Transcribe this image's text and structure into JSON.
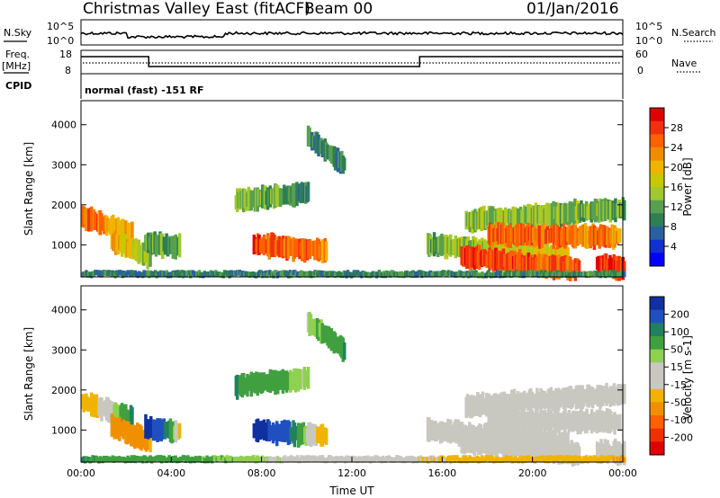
{
  "header": {
    "title": "Christmas Valley East (fitACF)",
    "beam": "Beam 00",
    "date": "01/Jan/2016"
  },
  "panels": {
    "nsky_label": "N.Sky",
    "nsearch_label": "N.Search",
    "nave_label": "Nave",
    "freq_label_1": "Freq.",
    "freq_label_2": "[MHz]",
    "cpid_label": "CPID",
    "cpid_text": "normal (fast) -151 RF",
    "noise_left_ticks": [
      "10^5",
      "10^0"
    ],
    "noise_right_ticks": [
      "10^5",
      "10^0"
    ],
    "freq_left_ticks": [
      "18",
      "8"
    ],
    "freq_right_ticks": [
      "60",
      "0"
    ]
  },
  "power_colorbar": {
    "label": "Power [dB]",
    "ticks": [
      "28",
      "24",
      "20",
      "16",
      "12",
      "8",
      "4"
    ],
    "colors": [
      "#e00000",
      "#f03010",
      "#ff6000",
      "#f08c00",
      "#f0b400",
      "#c8c800",
      "#a0c830",
      "#58a050",
      "#2f7f50",
      "#2a60a0",
      "#1030d0",
      "#0000ff"
    ]
  },
  "velocity_colorbar": {
    "label": "Velocity [m s-1]",
    "ticks": [
      "200",
      "100",
      "50",
      "15",
      "-15",
      "-50",
      "-100",
      "-200"
    ],
    "colors": [
      "#1030a0",
      "#2050c0",
      "#208060",
      "#40a040",
      "#90d050",
      "#c8c8c0",
      "#c8c8c0",
      "#f0b400",
      "#f09000",
      "#ff6000",
      "#f03000",
      "#e00000"
    ]
  },
  "chart_data": [
    {
      "type": "heatmap",
      "name": "power",
      "ylabel": "Slant Range [km]",
      "yticks": [
        "1000",
        "2000",
        "3000",
        "4000"
      ],
      "ylim": [
        200,
        4600
      ],
      "xlim": [
        0,
        24
      ],
      "bands": [
        {
          "t0": 0.0,
          "t1": 2.2,
          "r0": 1700,
          "r1": 1300,
          "v0": 24,
          "v1": 18
        },
        {
          "t0": 1.3,
          "t1": 3.0,
          "r0": 1100,
          "r1": 700,
          "v0": 20,
          "v1": 14
        },
        {
          "t0": 2.8,
          "t1": 4.3,
          "r0": 1050,
          "r1": 950,
          "v0": 12,
          "v1": 10
        },
        {
          "t0": 6.8,
          "t1": 10.0,
          "r0": 2100,
          "r1": 2300,
          "v0": 12,
          "v1": 10
        },
        {
          "t0": 10.0,
          "t1": 11.6,
          "r0": 3700,
          "r1": 3000,
          "v0": 10,
          "v1": 8
        },
        {
          "t0": 7.6,
          "t1": 10.8,
          "r0": 1000,
          "r1": 850,
          "v0": 26,
          "v1": 22
        },
        {
          "t0": 15.3,
          "t1": 21.5,
          "r0": 1000,
          "r1": 700,
          "v0": 12,
          "v1": 18
        },
        {
          "t0": 16.8,
          "t1": 22.0,
          "r0": 700,
          "r1": 400,
          "v0": 26,
          "v1": 24
        },
        {
          "t0": 17.0,
          "t1": 24.0,
          "r0": 1600,
          "r1": 1900,
          "v0": 14,
          "v1": 12
        },
        {
          "t0": 18.0,
          "t1": 23.8,
          "r0": 1250,
          "r1": 1200,
          "v0": 24,
          "v1": 22
        },
        {
          "t0": 22.8,
          "t1": 24.0,
          "r0": 500,
          "r1": 400,
          "v0": 26,
          "v1": 26
        },
        {
          "t0": 0.0,
          "t1": 24.0,
          "r0": 270,
          "r1": 270,
          "v0": 8,
          "v1": 10
        }
      ]
    },
    {
      "type": "heatmap",
      "name": "velocity",
      "ylabel": "Slant Range [km]",
      "yticks": [
        "1000",
        "2000",
        "3000",
        "4000"
      ],
      "ylim": [
        200,
        4600
      ],
      "xlim": [
        0,
        24
      ],
      "xlabel": "Time UT",
      "xticks": [
        "00:00",
        "04:00",
        "08:00",
        "12:00",
        "16:00",
        "20:00",
        "00:00"
      ],
      "bands": [
        {
          "t0": 0.0,
          "t1": 2.2,
          "r0": 1700,
          "r1": 1300,
          "v0": -50,
          "v1": 50
        },
        {
          "t0": 1.3,
          "t1": 3.0,
          "r0": 1100,
          "r1": 700,
          "v0": -100,
          "v1": -50
        },
        {
          "t0": 2.8,
          "t1": 4.3,
          "r0": 1050,
          "r1": 950,
          "v0": 200,
          "v1": -15
        },
        {
          "t0": 6.8,
          "t1": 10.0,
          "r0": 2100,
          "r1": 2300,
          "v0": 50,
          "v1": 15
        },
        {
          "t0": 10.0,
          "t1": 11.6,
          "r0": 3700,
          "r1": 3000,
          "v0": 15,
          "v1": 50
        },
        {
          "t0": 7.6,
          "t1": 10.8,
          "r0": 1000,
          "r1": 850,
          "v0": 200,
          "v1": -50
        },
        {
          "t0": 15.3,
          "t1": 21.5,
          "r0": 1000,
          "r1": 700,
          "v0": 0,
          "v1": 0
        },
        {
          "t0": 16.8,
          "t1": 22.0,
          "r0": 700,
          "r1": 400,
          "v0": 0,
          "v1": 0
        },
        {
          "t0": 17.0,
          "t1": 24.0,
          "r0": 1600,
          "r1": 1900,
          "v0": 0,
          "v1": 0
        },
        {
          "t0": 18.0,
          "t1": 23.8,
          "r0": 1250,
          "r1": 1200,
          "v0": 0,
          "v1": 0
        },
        {
          "t0": 22.8,
          "t1": 24.0,
          "r0": 500,
          "r1": 400,
          "v0": 0,
          "v1": 0
        },
        {
          "t0": 0.0,
          "t1": 24.0,
          "r0": 270,
          "r1": 270,
          "v0": 50,
          "v1": -50
        }
      ]
    }
  ]
}
